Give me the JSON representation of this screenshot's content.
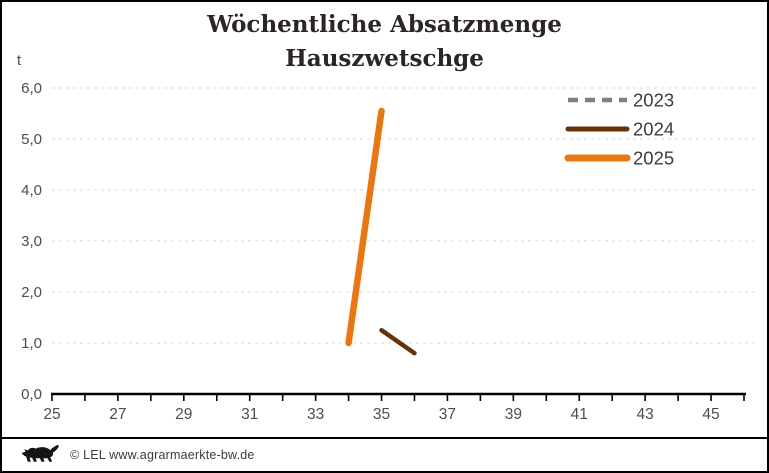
{
  "title": {
    "line1": "Wöchentliche Absatzmenge",
    "line2": "Hauszwetschge"
  },
  "footer": {
    "credit": "© LEL www.agrarmaerkte-bw.de",
    "logo": "baden-wuerttemberg-lion-icon"
  },
  "colors": {
    "series_2023": "#808080",
    "series_2024": "#66320A",
    "series_2025": "#E87711",
    "gridline": "#d9d9d9",
    "axis": "#000000",
    "tick_text": "#4d4d4d",
    "legend_text": "#3d3d3d",
    "title_text": "#2b2523"
  },
  "chart_data": {
    "type": "line",
    "title": "Wöchentliche Absatzmenge Hauszwetschge",
    "xlabel": "",
    "ylabel": "t",
    "xlim": [
      25,
      46
    ],
    "ylim": [
      0,
      6
    ],
    "grid": "horizontal, light dashed",
    "legend_position": "top-right, no border",
    "xtick_labels": [
      "25",
      "27",
      "29",
      "31",
      "33",
      "35",
      "37",
      "39",
      "41",
      "43",
      "45"
    ],
    "xtick_minor_step": 1,
    "ytick_labels": [
      "0,0",
      "1,0",
      "2,0",
      "3,0",
      "4,0",
      "5,0",
      "6,0"
    ],
    "ytick_values": [
      0,
      1,
      2,
      3,
      4,
      5,
      6
    ],
    "series": [
      {
        "name": "2023",
        "color": "#808080",
        "dashed": true,
        "line_width": 4,
        "x": [],
        "y": []
      },
      {
        "name": "2024",
        "color": "#66320A",
        "dashed": false,
        "line_width": 4.5,
        "x": [
          35,
          36
        ],
        "y": [
          1.25,
          0.8
        ]
      },
      {
        "name": "2025",
        "color": "#E87711",
        "dashed": false,
        "line_width": 6.5,
        "x": [
          34,
          35
        ],
        "y": [
          1.0,
          5.55
        ]
      }
    ]
  }
}
